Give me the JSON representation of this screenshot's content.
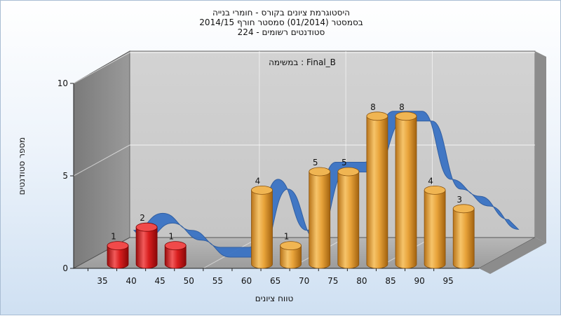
{
  "chart_data": {
    "type": "bar",
    "title_lines": [
      "היסטוגרמת ציונים בקורס - חומרי בנייה",
      "בסמסטר  (01/2014)  סמסטר חורף 2014/15",
      "224 - סטודנטים רשומים"
    ],
    "annotation": "במשימה : Final_B",
    "xlabel": "טווח ציונים",
    "ylabel": "מספר סטודנטים",
    "categories": [
      "35",
      "40",
      "45",
      "50",
      "55",
      "60",
      "65",
      "70",
      "75",
      "80",
      "85",
      "90",
      "95"
    ],
    "values": [
      1,
      2,
      1,
      0,
      0,
      4,
      1,
      5,
      5,
      8,
      8,
      4,
      3
    ],
    "bar_colors": [
      "#d81e1e",
      "#d81e1e",
      "#d81e1e",
      "#d81e1e",
      "#d81e1e",
      "#e8a33a",
      "#e8a33a",
      "#e8a33a",
      "#e8a33a",
      "#e8a33a",
      "#e8a33a",
      "#e8a33a",
      "#e8a33a"
    ],
    "ylim": [
      0,
      10
    ],
    "yticks": [
      0,
      5,
      10
    ],
    "curve_color": "#3a73c4",
    "grid": true
  }
}
